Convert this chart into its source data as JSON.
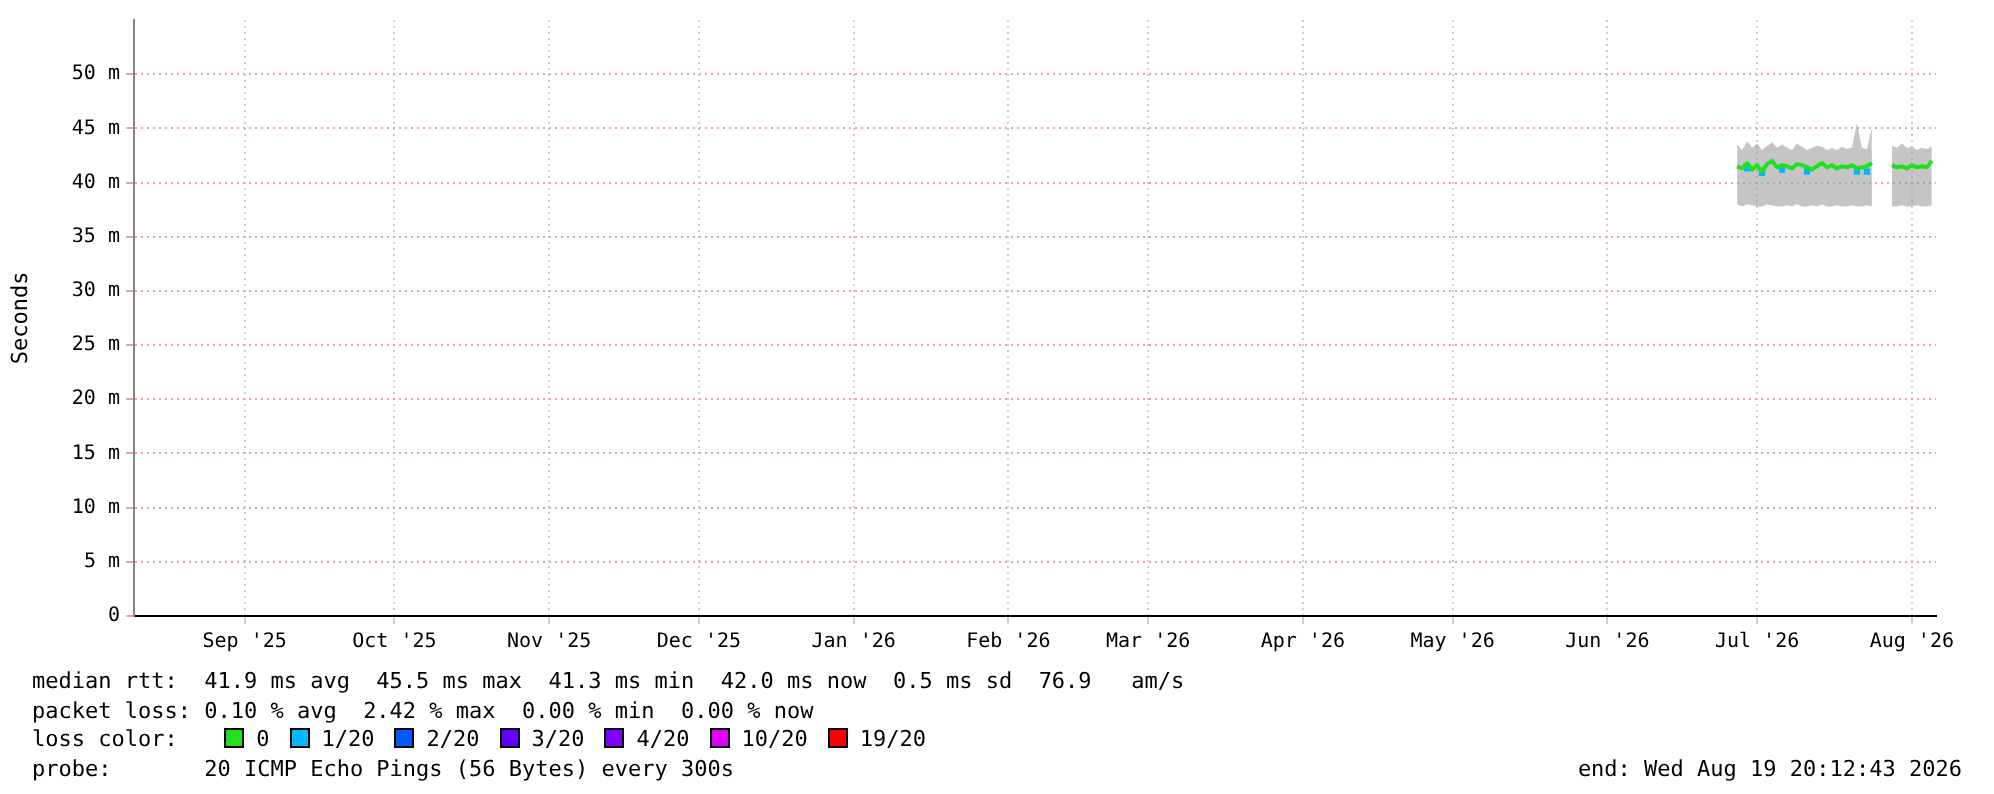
{
  "chart_data": {
    "type": "line",
    "ylabel": "Seconds",
    "legend_title": "loss color:",
    "legend": "bottom",
    "grid": true,
    "marker": "none",
    "line_style": "solid",
    "xlim": [
      "2025-08-23T20:00",
      "2026-08-19T20:12"
    ],
    "xticks": [
      {
        "value": "2025-09-15",
        "label": "Sep '25"
      },
      {
        "value": "2025-10-15",
        "label": "Oct '25"
      },
      {
        "value": "2025-11-15",
        "label": "Nov '25"
      },
      {
        "value": "2025-12-15",
        "label": "Dec '25"
      },
      {
        "value": "2026-01-15",
        "label": "Jan '26"
      },
      {
        "value": "2026-02-15",
        "label": "Feb '26"
      },
      {
        "value": "2026-03-15",
        "label": "Mar '26"
      },
      {
        "value": "2026-04-15",
        "label": "Apr '26"
      },
      {
        "value": "2026-05-15",
        "label": "May '26"
      },
      {
        "value": "2026-06-15",
        "label": "Jun '26"
      },
      {
        "value": "2026-07-15",
        "label": "Jul '26"
      },
      {
        "value": "2026-08-15",
        "label": "Aug '26"
      }
    ],
    "ylim": [
      0,
      55
    ],
    "yticks": [
      0,
      {
        "value": 5,
        "label": "5 m"
      },
      {
        "value": 10,
        "label": "10 m"
      },
      {
        "value": 15,
        "label": "15 m"
      },
      {
        "value": 20,
        "label": "20 m"
      },
      {
        "value": 25,
        "label": "25 m"
      },
      {
        "value": 30,
        "label": "30 m"
      },
      {
        "value": 35,
        "label": "35 m"
      },
      {
        "value": 40,
        "label": "40 m"
      },
      {
        "value": 45,
        "label": "45 m"
      },
      {
        "value": 50,
        "label": "50 m"
      }
    ],
    "series": [
      {
        "name": "0",
        "color": "#20e020",
        "x": [
          "2026-07-11",
          "2026-07-12",
          "2026-07-13",
          "2026-07-14",
          "2026-07-15",
          "2026-07-16",
          "2026-07-17",
          "2026-07-18",
          "2026-07-19",
          "2026-07-20",
          "2026-07-21",
          "2026-07-22",
          "2026-07-23",
          "2026-07-24",
          "2026-07-25",
          "2026-07-26",
          "2026-07-27",
          "2026-07-28",
          "2026-07-29",
          "2026-07-30",
          "2026-07-31",
          "2026-08-01",
          "2026-08-02",
          "2026-08-03",
          "2026-08-04",
          "2026-08-05",
          "2026-08-06",
          "2026-08-07",
          "2026-08-08",
          "2026-08-09",
          "2026-08-10",
          "2026-08-11",
          "2026-08-12",
          "2026-08-13",
          "2026-08-14",
          "2026-08-15",
          "2026-08-16",
          "2026-08-17",
          "2026-08-18",
          "2026-08-19"
        ],
        "values": [
          41.5,
          41.3,
          41.8,
          41.2,
          41.6,
          41.0,
          41.7,
          42.0,
          41.4,
          41.6,
          41.5,
          41.3,
          41.7,
          41.6,
          41.4,
          41.2,
          41.5,
          41.8,
          41.4,
          41.6,
          41.3,
          41.5,
          41.4,
          41.6,
          41.3,
          41.4,
          41.5,
          41.8,
          null,
          null,
          null,
          41.6,
          41.4,
          41.5,
          41.3,
          41.6,
          41.4,
          41.5,
          41.4,
          42.0
        ],
        "lower": [
          38.0,
          37.8,
          38.0,
          37.9,
          37.8,
          37.8,
          38.0,
          37.9,
          37.8,
          37.8,
          37.9,
          37.8,
          38.0,
          37.8,
          37.8,
          37.9,
          37.8,
          38.0,
          37.8,
          37.8,
          37.9,
          37.8,
          37.8,
          37.9,
          37.8,
          37.8,
          37.9,
          37.8,
          null,
          null,
          null,
          37.8,
          37.8,
          37.9,
          37.8,
          37.8,
          37.9,
          37.8,
          37.8,
          37.9
        ],
        "upper": [
          43.5,
          43.0,
          43.8,
          43.2,
          43.6,
          43.0,
          43.4,
          43.7,
          43.2,
          43.5,
          43.2,
          43.0,
          43.6,
          43.3,
          43.0,
          43.2,
          43.4,
          43.3,
          43.0,
          43.2,
          43.0,
          43.3,
          43.1,
          43.2,
          45.5,
          43.2,
          43.1,
          45.0,
          null,
          null,
          null,
          43.4,
          43.2,
          43.6,
          43.2,
          43.3,
          43.0,
          43.2,
          43.1,
          43.3
        ]
      },
      {
        "name": "1/20",
        "color": "#00b8ff",
        "type": "scatter",
        "marker": "square",
        "x": [
          "2026-07-13",
          "2026-07-16",
          "2026-07-20",
          "2026-07-25",
          "2026-08-04",
          "2026-08-06"
        ],
        "values": [
          41.3,
          40.9,
          41.2,
          41.0,
          41.0,
          41.0
        ]
      },
      {
        "name": "2/20",
        "color": "#0059ff",
        "type": "scatter"
      },
      {
        "name": "3/20",
        "color": "#5e00ff",
        "type": "scatter"
      },
      {
        "name": "4/20",
        "color": "#7e00ff",
        "type": "scatter"
      },
      {
        "name": "10/20",
        "color": "#dd00ff",
        "type": "scatter"
      },
      {
        "name": "19/20",
        "color": "#ff0000",
        "type": "scatter"
      }
    ],
    "annotations": [
      "median rtt:  41.9 ms avg  45.5 ms max  41.3 ms min  42.0 ms now  0.5 ms sd  76.9   am/s",
      "packet loss: 0.10 % avg  2.42 % max  0.00 % min  0.00 % now",
      "probe:       20 ICMP Echo Pings (56 Bytes) every 300s",
      "end: Wed Aug 19 20:12:43 2026"
    ]
  }
}
